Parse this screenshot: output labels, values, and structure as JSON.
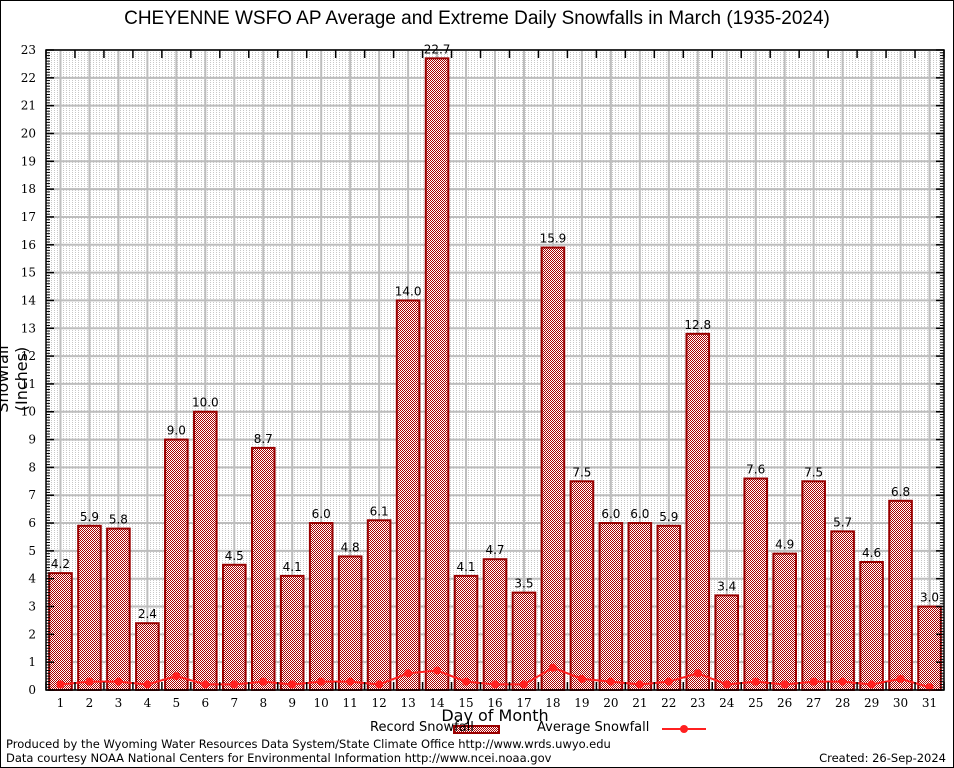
{
  "chart_data": {
    "type": "bar",
    "title": "CHEYENNE WSFO AP Average and Extreme Daily Snowfalls in March (1935-2024)",
    "xlabel": "Day of Month",
    "ylabel": "Snowfall (Inches)",
    "ylim": [
      0,
      23
    ],
    "yticks": [
      0,
      1,
      2,
      3,
      4,
      5,
      6,
      7,
      8,
      9,
      10,
      11,
      12,
      13,
      14,
      15,
      16,
      17,
      18,
      19,
      20,
      21,
      22,
      23
    ],
    "grid": true,
    "legend_position": "bottom-center",
    "categories": [
      "1",
      "2",
      "3",
      "4",
      "5",
      "6",
      "7",
      "8",
      "9",
      "10",
      "11",
      "12",
      "13",
      "14",
      "15",
      "16",
      "17",
      "18",
      "19",
      "20",
      "21",
      "22",
      "23",
      "24",
      "25",
      "26",
      "27",
      "28",
      "29",
      "30",
      "31"
    ],
    "series": [
      {
        "name": "Record Snowfall",
        "type": "bar",
        "color": "#aa0000",
        "values": [
          4.2,
          5.9,
          5.8,
          2.4,
          9.0,
          10.0,
          4.5,
          8.7,
          4.1,
          6.0,
          4.8,
          6.1,
          14.0,
          22.7,
          4.1,
          4.7,
          3.5,
          15.9,
          7.5,
          6.0,
          6.0,
          5.9,
          12.8,
          3.4,
          7.6,
          4.9,
          7.5,
          5.7,
          4.6,
          6.8,
          3.0
        ],
        "labels": [
          "4.2",
          "5.9",
          "5.8",
          "2.4",
          "9.0",
          "10.0",
          "4.5",
          "8.7",
          "4.1",
          "6.0",
          "4.8",
          "6.1",
          "14.0",
          "22.7",
          "4.1",
          "4.7",
          "3.5",
          "15.9",
          "7.5",
          "6.0",
          "6.0",
          "5.9",
          "12.8",
          "3.4",
          "7.6",
          "4.9",
          "7.5",
          "5.7",
          "4.6",
          "6.8",
          "3.0"
        ]
      },
      {
        "name": "Average Snowfall",
        "type": "line",
        "color": "#ff2020",
        "values": [
          0.2,
          0.3,
          0.3,
          0.2,
          0.5,
          0.2,
          0.2,
          0.3,
          0.2,
          0.3,
          0.3,
          0.2,
          0.6,
          0.7,
          0.3,
          0.2,
          0.2,
          0.8,
          0.4,
          0.3,
          0.2,
          0.3,
          0.6,
          0.2,
          0.3,
          0.2,
          0.3,
          0.3,
          0.2,
          0.4,
          0.1
        ]
      }
    ]
  },
  "footer": {
    "credit_line1": "Produced by the Wyoming Water Resources Data System/State Climate Office http://www.wrds.uwyo.edu",
    "credit_line2": "Data courtesy NOAA National Centers for Environmental Information http://www.ncei.noaa.gov",
    "created": "Created: 26-Sep-2024"
  }
}
